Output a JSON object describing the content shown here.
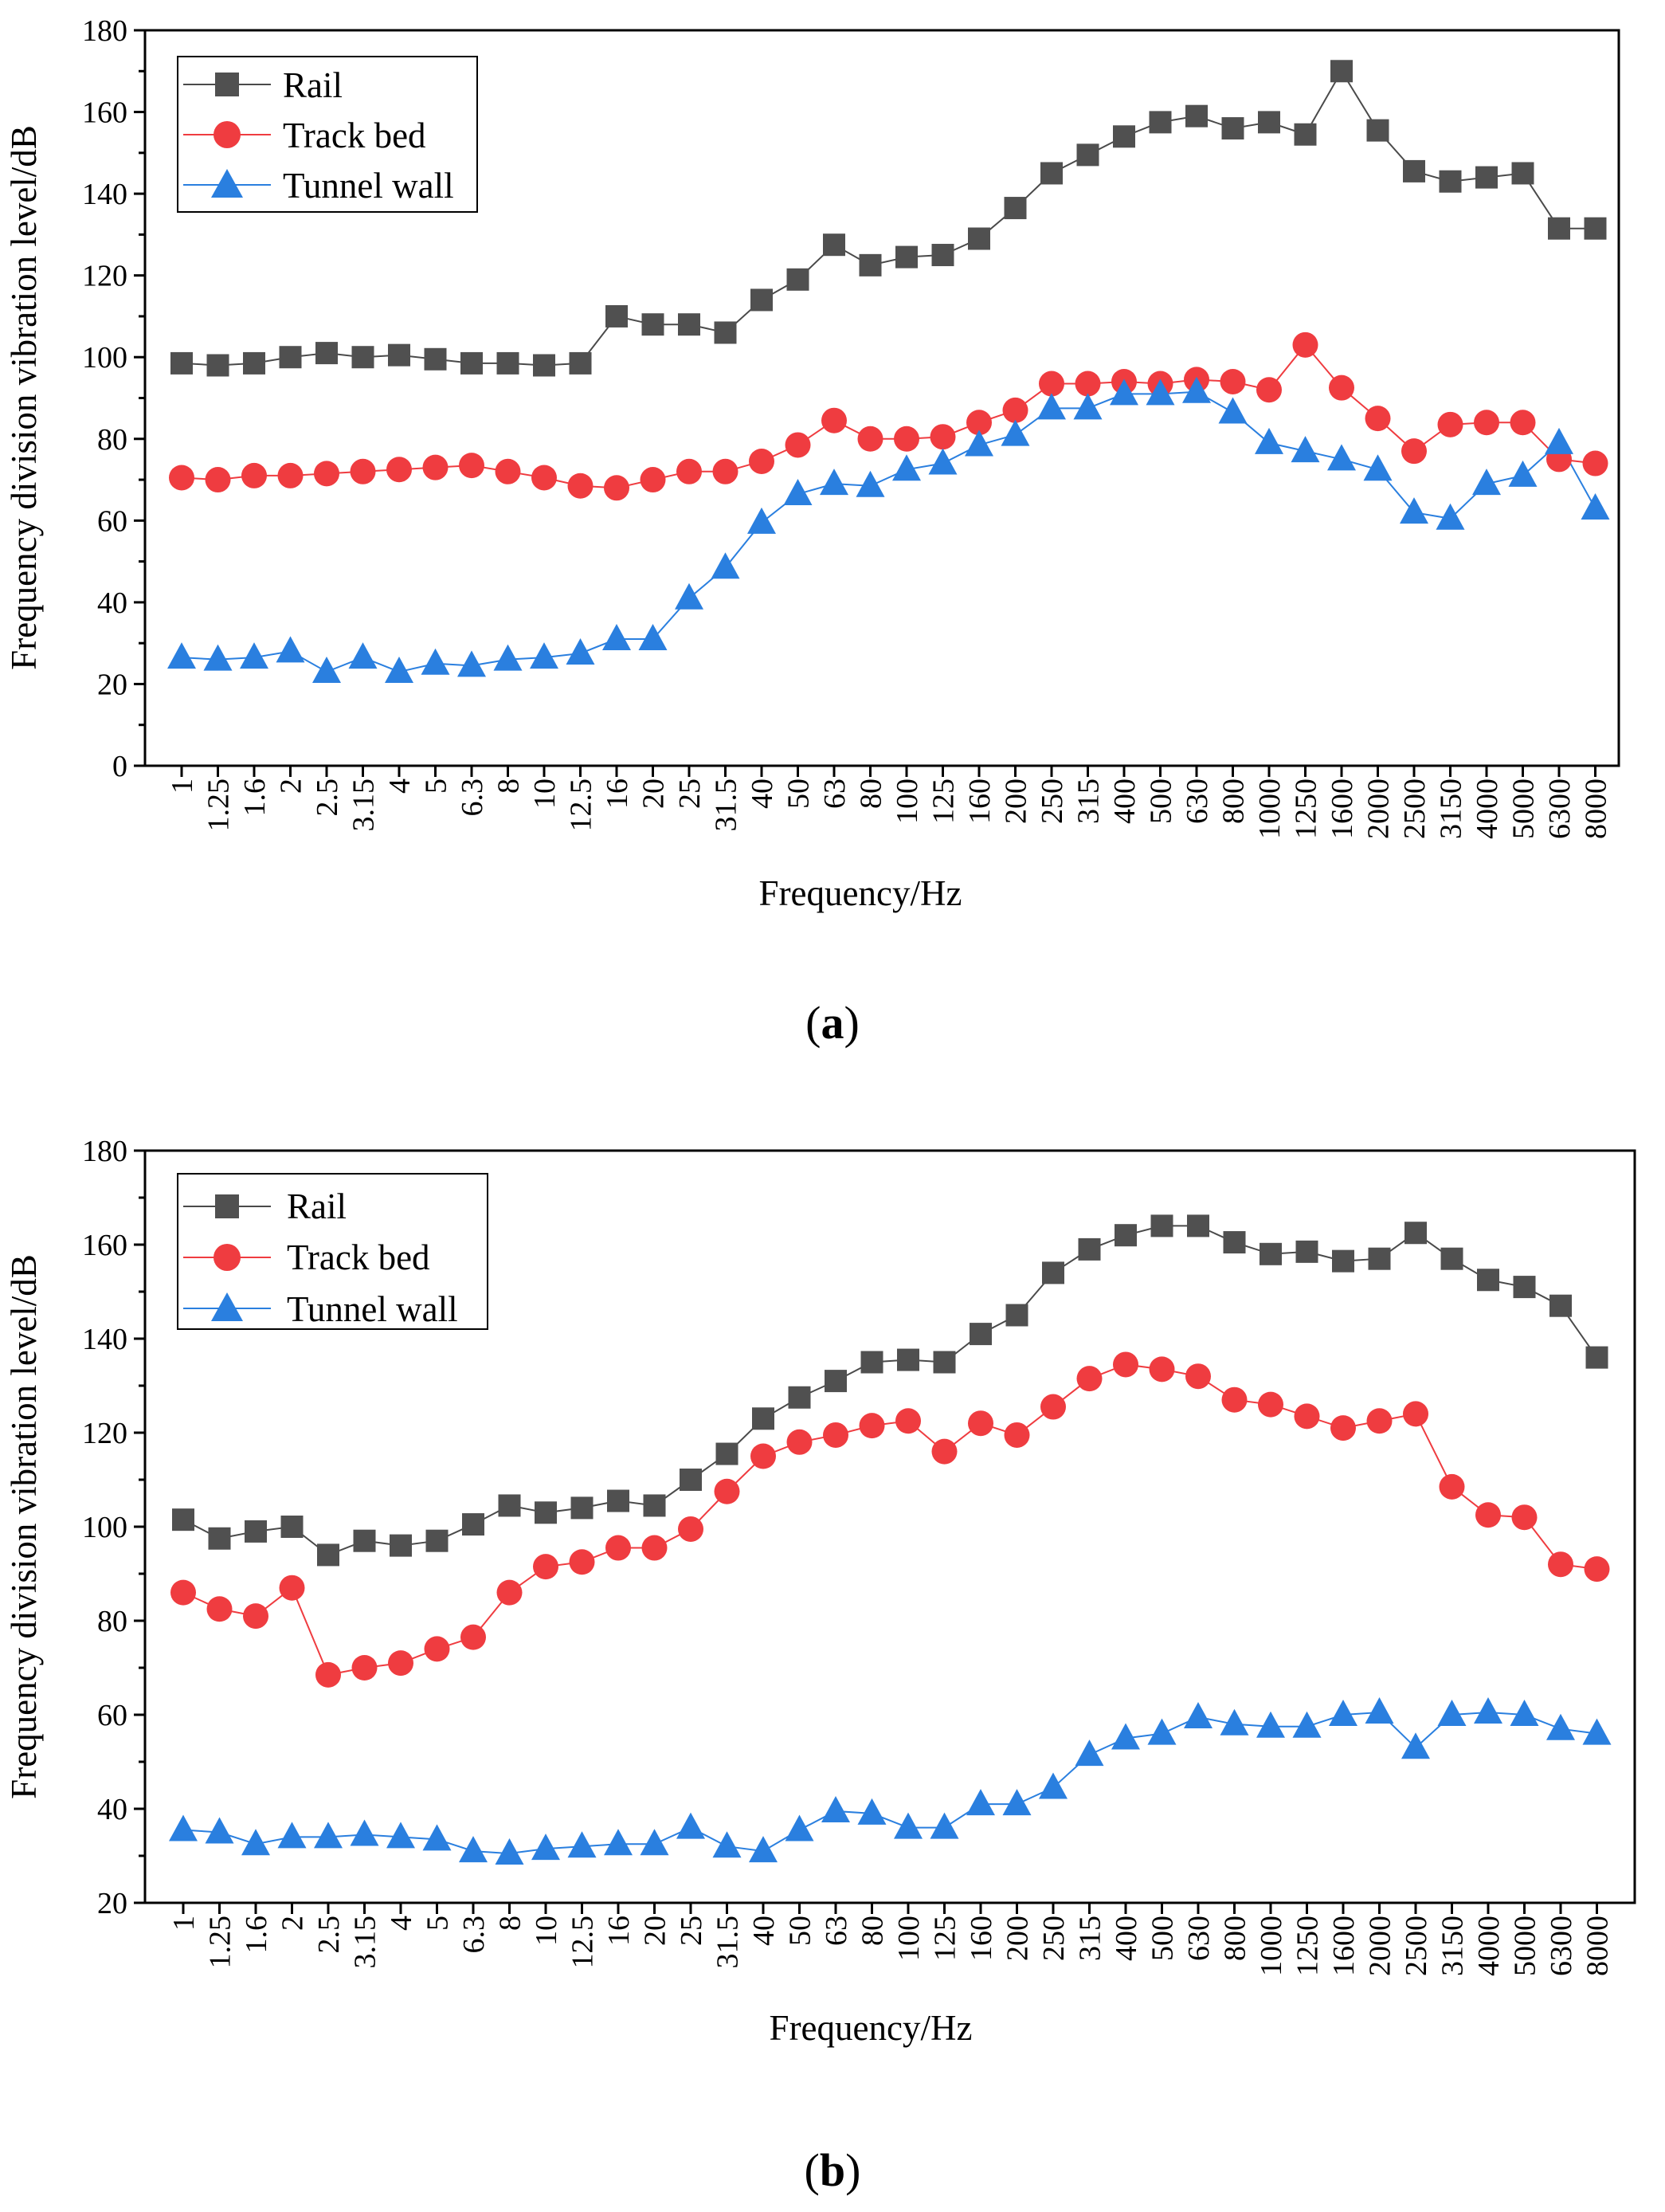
{
  "chart_data": [
    {
      "type": "line",
      "panel_label": "(a)",
      "panel_letter": "a",
      "title": "",
      "xlabel": "Frequency/Hz",
      "ylabel": "Frequency division vibration level/dB",
      "ylim": [
        0,
        180
      ],
      "yticks": [
        "0",
        "20",
        "40",
        "60",
        "80",
        "100",
        "120",
        "140",
        "160",
        "180"
      ],
      "legend_position": "top-left",
      "categories": [
        "1",
        "1.25",
        "1.6",
        "2",
        "2.5",
        "3.15",
        "4",
        "5",
        "6.3",
        "8",
        "10",
        "12.5",
        "16",
        "20",
        "25",
        "31.5",
        "40",
        "50",
        "63",
        "80",
        "100",
        "125",
        "160",
        "200",
        "250",
        "315",
        "400",
        "500",
        "630",
        "800",
        "1000",
        "1250",
        "1600",
        "2000",
        "2500",
        "3150",
        "4000",
        "5000",
        "6300",
        "8000"
      ],
      "series": [
        {
          "name": "Rail",
          "marker": "square",
          "color": "#505050",
          "line_color": "#4a4a4a",
          "values": [
            98.5,
            98,
            98.5,
            100,
            101,
            100,
            100.5,
            99.5,
            98.5,
            98.5,
            98,
            98.5,
            110,
            108,
            108,
            106,
            114,
            119,
            127.5,
            122.5,
            124.5,
            125,
            129,
            136.5,
            145,
            149.5,
            154,
            157.5,
            159,
            156,
            157.5,
            154.5,
            170,
            155.5,
            145.5,
            143,
            144,
            145,
            131.5,
            131.5
          ]
        },
        {
          "name": "Track bed",
          "marker": "circle",
          "color": "#ef3c40",
          "line_color": "#ef3c40",
          "values": [
            70.5,
            70,
            71,
            71,
            71.5,
            72,
            72.5,
            73,
            73.5,
            72,
            70.5,
            68.5,
            68,
            70,
            72,
            72,
            74.5,
            78.5,
            84.5,
            80,
            80,
            80.5,
            84,
            87,
            93.5,
            93.5,
            94,
            93.5,
            94.5,
            94,
            92,
            103,
            92.5,
            85,
            77,
            83.5,
            84,
            84,
            75,
            74
          ]
        },
        {
          "name": "Tunnel wall",
          "marker": "triangle",
          "color": "#2a7fdf",
          "line_color": "#2a7fdf",
          "values": [
            26.5,
            26,
            26.5,
            28,
            23,
            26.5,
            23,
            25,
            24.5,
            26,
            26.5,
            27.5,
            31,
            31,
            41,
            48.5,
            59.5,
            66.5,
            69,
            68.5,
            72.5,
            74,
            78.5,
            81,
            87.5,
            87.5,
            91,
            91,
            91.5,
            86.5,
            79,
            77,
            75,
            72.5,
            62,
            60.5,
            69,
            71,
            79,
            63
          ]
        }
      ]
    },
    {
      "type": "line",
      "panel_label": "(b)",
      "panel_letter": "b",
      "title": "",
      "xlabel": "Frequency/Hz",
      "ylabel": "Frequency division vibration level/dB",
      "ylim": [
        20,
        180
      ],
      "yticks": [
        "20",
        "40",
        "60",
        "80",
        "100",
        "120",
        "140",
        "160",
        "180"
      ],
      "legend_position": "top-left",
      "categories": [
        "1",
        "1.25",
        "1.6",
        "2",
        "2.5",
        "3.15",
        "4",
        "5",
        "6.3",
        "8",
        "10",
        "12.5",
        "16",
        "20",
        "25",
        "31.5",
        "40",
        "50",
        "63",
        "80",
        "100",
        "125",
        "160",
        "200",
        "250",
        "315",
        "400",
        "500",
        "630",
        "800",
        "1000",
        "1250",
        "1600",
        "2000",
        "2500",
        "3150",
        "4000",
        "5000",
        "6300",
        "8000"
      ],
      "series": [
        {
          "name": "Rail",
          "marker": "square",
          "color": "#505050",
          "line_color": "#4a4a4a",
          "values": [
            101.5,
            97.5,
            99,
            100,
            94,
            97,
            96,
            97,
            100.5,
            104.5,
            103,
            104,
            105.5,
            104.5,
            110,
            115.5,
            123,
            127.5,
            131,
            135,
            135.5,
            135,
            141,
            145,
            154,
            159,
            162,
            164,
            164,
            160.5,
            158,
            158.5,
            156.5,
            157,
            162.5,
            157,
            152.5,
            151,
            147,
            136
          ]
        },
        {
          "name": "Track bed",
          "marker": "circle",
          "color": "#ef3c40",
          "line_color": "#ef3c40",
          "values": [
            86,
            82.5,
            81,
            87,
            68.5,
            70,
            71,
            74,
            76.5,
            86,
            91.5,
            92.5,
            95.5,
            95.5,
            99.5,
            107.5,
            115,
            118,
            119.5,
            121.5,
            122.5,
            116,
            122,
            119.5,
            125.5,
            131.5,
            134.5,
            133.5,
            132,
            127,
            126,
            123.5,
            121,
            122.5,
            124,
            108.5,
            102.5,
            102,
            92,
            91
          ]
        },
        {
          "name": "Tunnel wall",
          "marker": "triangle",
          "color": "#2a7fdf",
          "line_color": "#2a7fdf",
          "values": [
            35.5,
            35,
            32.5,
            34,
            34,
            34.5,
            34,
            33.5,
            31,
            30.5,
            31.5,
            32,
            32.5,
            32.5,
            36,
            32,
            31,
            35.5,
            39.5,
            39,
            36,
            36,
            41,
            41,
            44.5,
            51.5,
            55,
            56,
            59.5,
            58,
            57.5,
            57.5,
            60,
            60.5,
            53,
            60,
            60.5,
            60,
            57,
            56
          ]
        }
      ]
    }
  ]
}
